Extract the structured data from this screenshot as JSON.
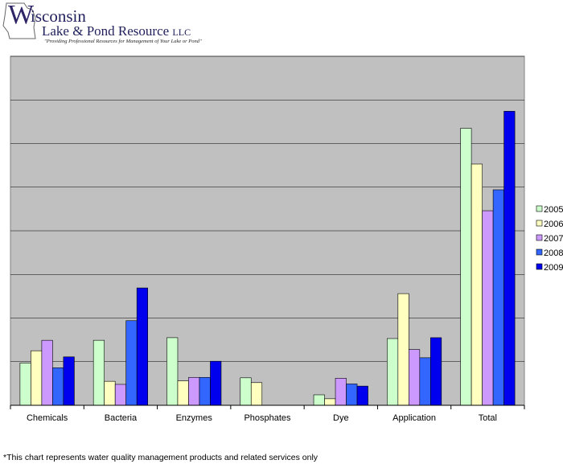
{
  "logo": {
    "first_letter": "W",
    "line1_rest": "isconsin",
    "line2": "Lake & Pond Resource",
    "line2_suffix": "LLC",
    "tagline": "\"Providing Professional Resources for Management of Your Lake or Pond\""
  },
  "footnote": "*This chart represents water quality management products and related services only",
  "colors": {
    "plot_background": "#c0c0c0",
    "gridline": "#000000",
    "bar_outline": "#000000"
  },
  "chart_data": {
    "type": "bar",
    "title": "",
    "xlabel": "",
    "ylabel": "",
    "ylim": [
      0,
      8
    ],
    "grid": true,
    "y_tick_labels_shown": false,
    "legend_position": "right",
    "categories": [
      "Chemicals",
      "Bacteria",
      "Enzymes",
      "Phosphates",
      "Dye",
      "Application",
      "Total"
    ],
    "series": [
      {
        "name": "2005",
        "color": "#ccffcc",
        "values": [
          0.97,
          1.49,
          1.55,
          0.63,
          0.24,
          1.53,
          6.35
        ]
      },
      {
        "name": "2006",
        "color": "#ffffc0",
        "values": [
          1.25,
          0.55,
          0.56,
          0.52,
          0.15,
          2.56,
          5.53
        ]
      },
      {
        "name": "2007",
        "color": "#cc99ff",
        "values": [
          1.49,
          0.48,
          0.64,
          0.0,
          0.62,
          1.28,
          4.46
        ]
      },
      {
        "name": "2008",
        "color": "#3366ff",
        "values": [
          0.86,
          1.94,
          0.64,
          0.0,
          0.49,
          1.09,
          4.94
        ]
      },
      {
        "name": "2009",
        "color": "#0000ee",
        "values": [
          1.11,
          2.69,
          1.01,
          0.0,
          0.44,
          1.55,
          6.74
        ]
      }
    ]
  }
}
